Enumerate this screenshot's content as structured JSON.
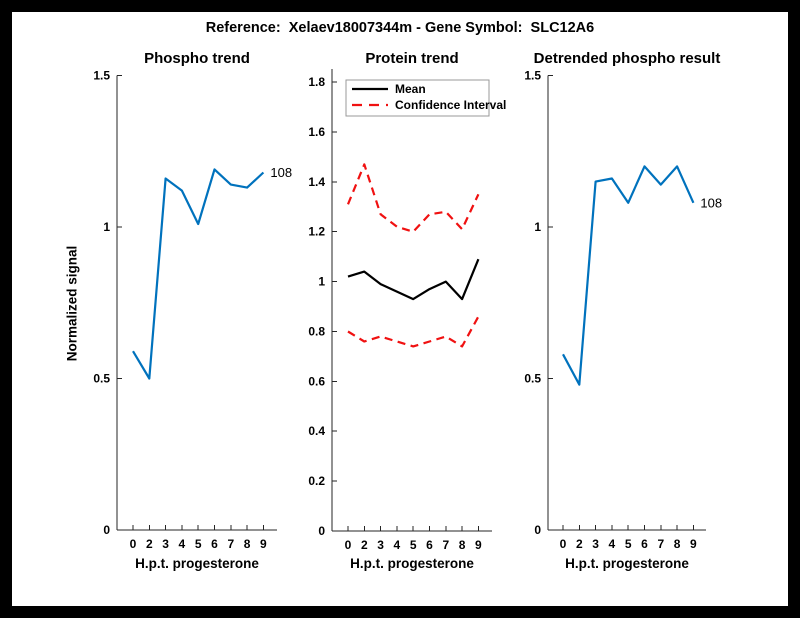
{
  "figure": {
    "title": "Reference:  Xelaev18007344m - Gene Symbol:  SLC12A6"
  },
  "palette": {
    "blue": "#0072BD",
    "red": "#F01111",
    "black": "#000000",
    "axis": "#262626",
    "legend_border": "#999999"
  },
  "chart_data": [
    {
      "type": "line",
      "title": "Phospho trend",
      "xlabel": "H.p.t. progesterone",
      "ylabel": "Normalized signal",
      "categories": [
        "0",
        "2",
        "3",
        "4",
        "5",
        "6",
        "7",
        "8",
        "9"
      ],
      "x_evenly_spaced": true,
      "ylim": [
        0,
        1.5
      ],
      "yticks": [
        {
          "v": 0,
          "label": "0"
        },
        {
          "v": 0.5,
          "label": "0.5"
        },
        {
          "v": 1,
          "label": "1"
        },
        {
          "v": 1.5,
          "label": "1.5"
        }
      ],
      "grid": false,
      "series": [
        {
          "name": "phospho-signal",
          "color_key": "blue",
          "dashed": false,
          "values": [
            0.59,
            0.5,
            1.16,
            1.12,
            1.01,
            1.19,
            1.14,
            1.13,
            1.18
          ]
        }
      ],
      "annotation": {
        "text": "108",
        "series_index": 0,
        "point_index": 8
      },
      "legend": null
    },
    {
      "type": "line",
      "title": "Protein trend",
      "xlabel": "H.p.t. progesterone",
      "ylabel": "",
      "categories": [
        "0",
        "2",
        "3",
        "4",
        "5",
        "6",
        "7",
        "8",
        "9"
      ],
      "x_evenly_spaced": true,
      "ylim": [
        0,
        1.852
      ],
      "yticks": [
        {
          "v": 0,
          "label": "0"
        },
        {
          "v": 0.2,
          "label": "0.2"
        },
        {
          "v": 0.4,
          "label": "0.4"
        },
        {
          "v": 0.6,
          "label": "0.6"
        },
        {
          "v": 0.8,
          "label": "0.8"
        },
        {
          "v": 1,
          "label": "1"
        },
        {
          "v": 1.2,
          "label": "1.2"
        },
        {
          "v": 1.4,
          "label": "1.4"
        },
        {
          "v": 1.6,
          "label": "1.6"
        },
        {
          "v": 1.8,
          "label": "1.8"
        }
      ],
      "grid": false,
      "series": [
        {
          "name": "mean",
          "color_key": "black",
          "dashed": false,
          "values": [
            1.02,
            1.04,
            0.99,
            0.96,
            0.93,
            0.97,
            1.0,
            0.93,
            1.09
          ]
        },
        {
          "name": "ci-upper",
          "color_key": "red",
          "dashed": true,
          "values": [
            1.31,
            1.47,
            1.27,
            1.22,
            1.2,
            1.27,
            1.28,
            1.21,
            1.35
          ]
        },
        {
          "name": "ci-lower",
          "color_key": "red",
          "dashed": true,
          "values": [
            0.8,
            0.76,
            0.78,
            0.76,
            0.74,
            0.76,
            0.78,
            0.74,
            0.86
          ]
        }
      ],
      "annotation": null,
      "legend": {
        "position": "top-left",
        "entries": [
          {
            "label": "Mean",
            "color_key": "black",
            "dashed": false
          },
          {
            "label": "Confidence Interval",
            "color_key": "red",
            "dashed": true
          }
        ]
      }
    },
    {
      "type": "line",
      "title": "Detrended phospho result",
      "xlabel": "H.p.t. progesterone",
      "ylabel": "",
      "categories": [
        "0",
        "2",
        "3",
        "4",
        "5",
        "6",
        "7",
        "8",
        "9"
      ],
      "x_evenly_spaced": true,
      "ylim": [
        0,
        1.5
      ],
      "yticks": [
        {
          "v": 0,
          "label": "0"
        },
        {
          "v": 0.5,
          "label": "0.5"
        },
        {
          "v": 1,
          "label": "1"
        },
        {
          "v": 1.5,
          "label": "1.5"
        }
      ],
      "grid": false,
      "series": [
        {
          "name": "detrended-phospho",
          "color_key": "blue",
          "dashed": false,
          "values": [
            0.58,
            0.48,
            1.15,
            1.16,
            1.08,
            1.2,
            1.14,
            1.2,
            1.08
          ]
        }
      ],
      "annotation": {
        "text": "108",
        "series_index": 0,
        "point_index": 8
      },
      "legend": null
    }
  ]
}
